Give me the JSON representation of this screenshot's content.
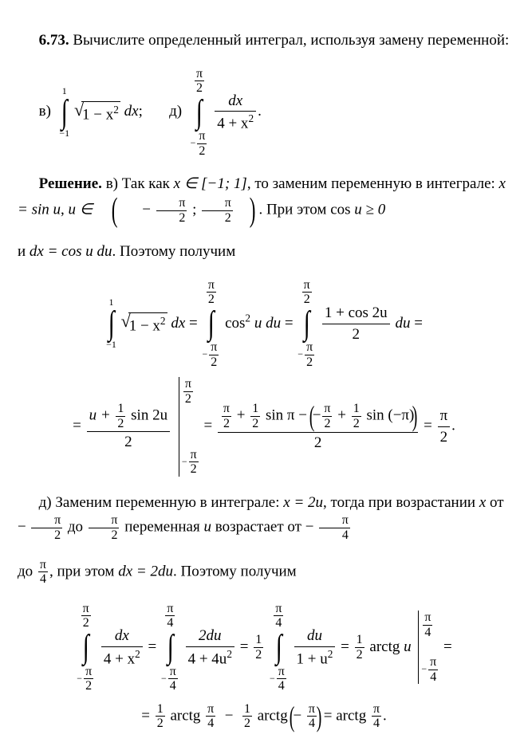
{
  "problem_number": "6.73.",
  "problem_statement": "Вычислите определенный интеграл, используя замену переменной:",
  "item_v_label": "в)",
  "item_d_label": "д)",
  "int_v": {
    "lower": "−1",
    "upper": "1",
    "integrand_radicand": "1 − x",
    "dx": "dx",
    "sq": "2"
  },
  "int_d": {
    "lower_num": "π",
    "lower_den": "2",
    "upper_num": "π",
    "upper_den": "2",
    "frac_num": "dx",
    "frac_den": "4 + x"
  },
  "sol_label": "Решение.",
  "sol_v_1a": "Так как ",
  "sol_v_1b": "x ∈ [−1; 1]",
  "sol_v_1c": ", то заменим перемен­ную в интеграле: ",
  "sol_v_1d": "x = sin u",
  "sol_v_1e": ", ",
  "sol_v_1f": "u ∈",
  "interval_minus": "−",
  "pi": "π",
  "two": "2",
  "semicolon": ";",
  "sol_v_1g": ". При этом cos ",
  "sol_v_1h": "u ≥ 0",
  "sol_v_2a": "и ",
  "sol_v_2b": "dx = cos u du",
  "sol_v_2c": ". Поэтому получим",
  "cos2u": "cos",
  "u_du": "u du",
  "one_plus_cos2u": "1 + cos 2u",
  "du": "du",
  "eq": " = ",
  "u_plus": "u +",
  "half": "1",
  "sin2u": " sin 2u",
  "sin_pi": " sin π − ",
  "sin_mpi": " sin (−π)",
  "plus": " + ",
  "minus": "−",
  "result_v": "π",
  "sol_d_1a": "Заменим переменную в интеграле: ",
  "sol_d_1b": "x = 2u",
  "sol_d_1c": ", тогда при возрастании ",
  "sol_d_1d": "x",
  "sol_d_1e": " от ",
  "sol_d_1f": " до ",
  "sol_d_1g": " переменная ",
  "sol_d_1h": "u",
  "sol_d_1i": " возрастает от ",
  "four": "4",
  "sol_d_2a": ", при этом ",
  "sol_d_2b": "dx = 2du",
  "sol_d_2c": ". Поэтому получим",
  "two_du": "2du",
  "four_plus_4u2": "4 + 4u",
  "du_only": "du",
  "one_plus_u2": "1 + u",
  "arctg": " arctg ",
  "u": "u",
  "final_d": "arctg ",
  "dot": "."
}
